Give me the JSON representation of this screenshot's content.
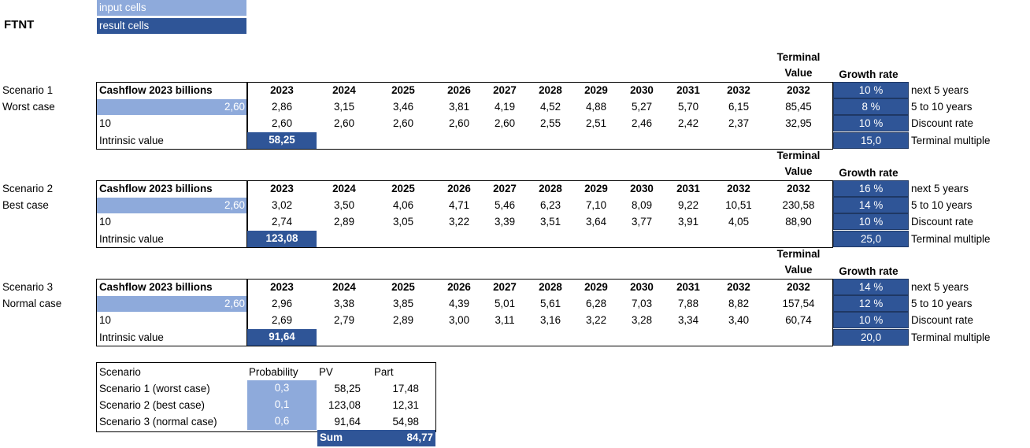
{
  "ticker": "FTNT",
  "legend": {
    "input": "input cells",
    "result": "result cells"
  },
  "columns": {
    "years": [
      "2023",
      "2024",
      "2025",
      "2026",
      "2027",
      "2028",
      "2029",
      "2030",
      "2031",
      "2032"
    ],
    "terminal_line1": "Terminal",
    "terminal_line2": "Value",
    "terminal_year": "2032",
    "growth_rate": "Growth rate"
  },
  "scenarios": [
    {
      "label": "Scenario 1",
      "case": "Worst case",
      "header": "Cashflow 2023 billions",
      "cashflow_input": "2,60",
      "projected": [
        "2,86",
        "3,15",
        "3,46",
        "3,81",
        "4,19",
        "4,52",
        "4,88",
        "5,27",
        "5,70",
        "6,15",
        "85,45"
      ],
      "discount_label": "10",
      "discounted": [
        "2,60",
        "2,60",
        "2,60",
        "2,60",
        "2,60",
        "2,55",
        "2,51",
        "2,46",
        "2,42",
        "2,37",
        "32,95"
      ],
      "intrinsic_label": "Intrinsic value",
      "intrinsic_value": "58,25",
      "params": [
        {
          "value": "10 %",
          "label": "next 5 years"
        },
        {
          "value": "8 %",
          "label": "5 to 10 years"
        },
        {
          "value": "10 %",
          "label": "Discount rate"
        },
        {
          "value": "15,0",
          "label": "Terminal multiple"
        }
      ]
    },
    {
      "label": "Scenario 2",
      "case": "Best case",
      "header": "Cashflow 2023 billions",
      "cashflow_input": "2,60",
      "projected": [
        "3,02",
        "3,50",
        "4,06",
        "4,71",
        "5,46",
        "6,23",
        "7,10",
        "8,09",
        "9,22",
        "10,51",
        "230,58"
      ],
      "discount_label": "10",
      "discounted": [
        "2,74",
        "2,89",
        "3,05",
        "3,22",
        "3,39",
        "3,51",
        "3,64",
        "3,77",
        "3,91",
        "4,05",
        "88,90"
      ],
      "intrinsic_label": "Intrinsic value",
      "intrinsic_value": "123,08",
      "params": [
        {
          "value": "16 %",
          "label": "next 5 years"
        },
        {
          "value": "14 %",
          "label": "5 to 10 years"
        },
        {
          "value": "10 %",
          "label": "Discount rate"
        },
        {
          "value": "25,0",
          "label": "Terminal multiple"
        }
      ]
    },
    {
      "label": "Scenario 3",
      "case": "Normal case",
      "header": "Cashflow 2023 billions",
      "cashflow_input": "2,60",
      "projected": [
        "2,96",
        "3,38",
        "3,85",
        "4,39",
        "5,01",
        "5,61",
        "6,28",
        "7,03",
        "7,88",
        "8,82",
        "157,54"
      ],
      "discount_label": "10",
      "discounted": [
        "2,69",
        "2,79",
        "2,89",
        "3,00",
        "3,11",
        "3,16",
        "3,22",
        "3,28",
        "3,34",
        "3,40",
        "60,74"
      ],
      "intrinsic_label": "Intrinsic value",
      "intrinsic_value": "91,64",
      "params": [
        {
          "value": "14 %",
          "label": "next 5 years"
        },
        {
          "value": "12 %",
          "label": "5 to 10 years"
        },
        {
          "value": "10 %",
          "label": "Discount rate"
        },
        {
          "value": "20,0",
          "label": "Terminal multiple"
        }
      ]
    }
  ],
  "summary": {
    "headers": [
      "Scenario",
      "Probability",
      "PV",
      "Part"
    ],
    "rows": [
      {
        "name": "Scenario 1 (worst case)",
        "probability": "0,3",
        "pv": "58,25",
        "part": "17,48"
      },
      {
        "name": "Scenario 2 (best case)",
        "probability": "0,1",
        "pv": "123,08",
        "part": "12,31"
      },
      {
        "name": "Scenario 3 (normal case)",
        "probability": "0,6",
        "pv": "91,64",
        "part": "54,98"
      }
    ],
    "sum_label": "Sum",
    "sum_value": "84,77"
  }
}
